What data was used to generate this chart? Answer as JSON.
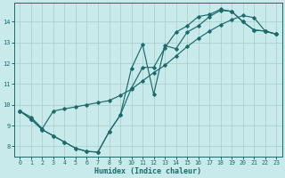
{
  "xlabel": "Humidex (Indice chaleur)",
  "bg_color": "#c8eaea",
  "grid_color": "#a8cccc",
  "line_color": "#1a6b6b",
  "xlim": [
    -0.5,
    23.5
  ],
  "ylim": [
    7.5,
    14.9
  ],
  "xticks": [
    0,
    1,
    2,
    3,
    4,
    5,
    6,
    7,
    8,
    9,
    10,
    11,
    12,
    13,
    14,
    15,
    16,
    17,
    18,
    19,
    20,
    21,
    22,
    23
  ],
  "yticks": [
    8,
    9,
    10,
    11,
    12,
    13,
    14
  ],
  "line1_x": [
    0,
    1,
    2,
    3,
    4,
    5,
    6,
    7,
    8,
    9,
    10,
    11,
    12,
    13,
    14,
    15,
    16,
    17,
    18,
    19,
    20,
    21,
    22,
    23
  ],
  "line1_y": [
    9.7,
    9.3,
    8.8,
    8.5,
    8.2,
    7.9,
    7.75,
    7.72,
    8.7,
    9.5,
    10.8,
    11.8,
    11.8,
    12.75,
    13.5,
    13.8,
    14.25,
    14.35,
    14.6,
    14.5,
    14.0,
    13.6,
    13.55,
    13.4
  ],
  "line2_x": [
    0,
    1,
    2,
    3,
    4,
    5,
    6,
    7,
    8,
    9,
    10,
    11,
    12,
    13,
    14,
    15,
    16,
    17,
    18,
    19,
    20,
    21,
    22,
    23
  ],
  "line2_y": [
    9.7,
    9.3,
    8.8,
    8.5,
    8.2,
    7.9,
    7.75,
    7.72,
    8.7,
    9.5,
    11.75,
    12.9,
    10.5,
    12.85,
    12.7,
    13.5,
    13.8,
    14.25,
    14.55,
    14.5,
    14.0,
    13.6,
    13.55,
    13.4
  ],
  "line3_x": [
    0,
    1,
    2,
    3,
    4,
    5,
    6,
    7,
    8,
    9,
    10,
    11,
    12,
    13,
    14,
    15,
    16,
    17,
    18,
    19,
    20,
    21,
    22,
    23
  ],
  "line3_y": [
    9.7,
    9.4,
    8.85,
    9.7,
    9.8,
    9.9,
    10.0,
    10.1,
    10.2,
    10.45,
    10.75,
    11.15,
    11.55,
    11.9,
    12.35,
    12.8,
    13.2,
    13.55,
    13.85,
    14.1,
    14.3,
    14.2,
    13.55,
    13.4
  ]
}
